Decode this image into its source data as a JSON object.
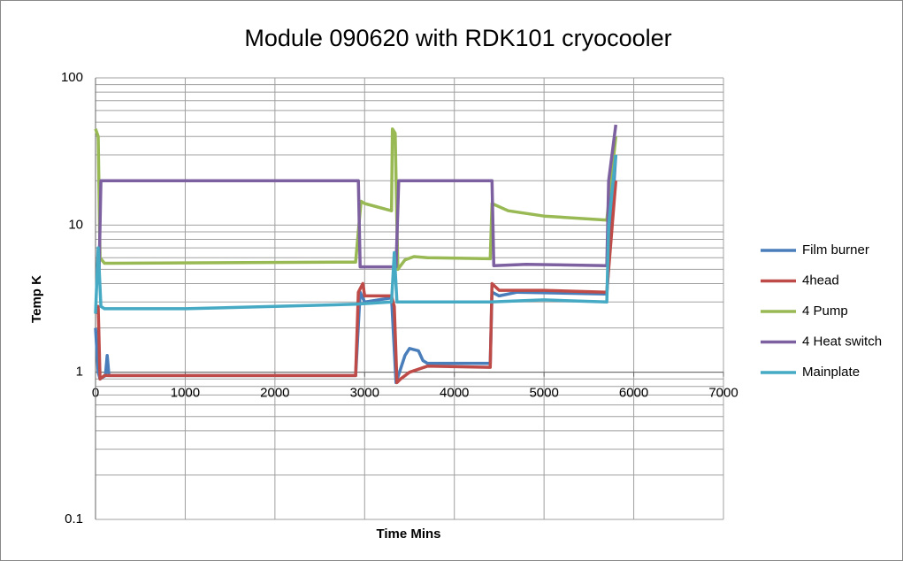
{
  "chart_data": {
    "type": "line",
    "title": "Module 090620 with RDK101 cryocooler",
    "x_label": "Time Mins",
    "y_label": "Temp K",
    "log_y": true,
    "grid": true,
    "legend": "right",
    "x_axis_at": 1,
    "xlim": [
      0,
      7000
    ],
    "xticks": [
      0,
      1000,
      2000,
      3000,
      4000,
      5000,
      6000,
      7000
    ],
    "ylim": [
      0.1,
      100
    ],
    "yticks": [
      0.1,
      1,
      10,
      100
    ],
    "yminorticks": [
      0.2,
      0.3,
      0.4,
      0.5,
      0.6,
      0.7,
      0.8,
      0.9,
      2,
      3,
      4,
      5,
      6,
      7,
      8,
      9,
      20,
      30,
      40,
      50,
      60,
      70,
      80,
      90
    ],
    "series": [
      {
        "name": "Film burner",
        "color": "#4a7ebb",
        "x": [
          0,
          30,
          50,
          110,
          130,
          150,
          2900,
          2950,
          3000,
          3300,
          3350,
          3450,
          3500,
          3600,
          3650,
          3700,
          4400,
          4420,
          4500,
          4700,
          5700,
          5800
        ],
        "values": [
          2,
          1,
          0.9,
          0.95,
          1.3,
          0.95,
          0.95,
          3.5,
          3.0,
          3.2,
          0.85,
          1.3,
          1.45,
          1.4,
          1.2,
          1.15,
          1.15,
          3.5,
          3.3,
          3.5,
          3.4,
          30
        ]
      },
      {
        "name": "4head",
        "color": "#be4b48",
        "x": [
          0,
          30,
          50,
          100,
          2900,
          2930,
          2980,
          3000,
          3300,
          3330,
          3360,
          3400,
          3500,
          3700,
          4400,
          4420,
          4500,
          4700,
          5000,
          5700,
          5800
        ],
        "values": [
          2.5,
          2.8,
          0.9,
          0.95,
          0.95,
          3.5,
          4,
          3.3,
          3.3,
          2.8,
          0.85,
          0.9,
          1.0,
          1.1,
          1.08,
          4,
          3.6,
          3.6,
          3.6,
          3.5,
          20
        ]
      },
      {
        "name": "4 Pump",
        "color": "#98b954",
        "x": [
          0,
          30,
          50,
          100,
          2900,
          2960,
          3000,
          3300,
          3310,
          3340,
          3370,
          3450,
          3550,
          3700,
          4400,
          4420,
          4600,
          5000,
          5700,
          5800
        ],
        "values": [
          45,
          40,
          6,
          5.5,
          5.6,
          14.5,
          14,
          12.5,
          45,
          42,
          5,
          5.8,
          6.1,
          6.0,
          5.9,
          14,
          12.5,
          11.5,
          10.8,
          40
        ]
      },
      {
        "name": "4 Heat switch",
        "color": "#7d60a0",
        "x": [
          0,
          40,
          60,
          2930,
          2950,
          3350,
          3380,
          4420,
          4440,
          4800,
          5700,
          5720,
          5800
        ],
        "values": [
          5,
          5,
          20,
          20,
          5.2,
          5.2,
          20,
          20,
          5.3,
          5.4,
          5.3,
          20,
          48
        ]
      },
      {
        "name": "Mainplate",
        "color": "#46aac5",
        "x": [
          0,
          30,
          60,
          100,
          1000,
          2000,
          2900,
          3300,
          3330,
          3360,
          4400,
          5000,
          5700,
          5720,
          5800
        ],
        "values": [
          2.5,
          7,
          2.8,
          2.7,
          2.7,
          2.8,
          2.9,
          3.0,
          6.5,
          3.0,
          3.0,
          3.1,
          3.0,
          10,
          30
        ]
      }
    ]
  }
}
